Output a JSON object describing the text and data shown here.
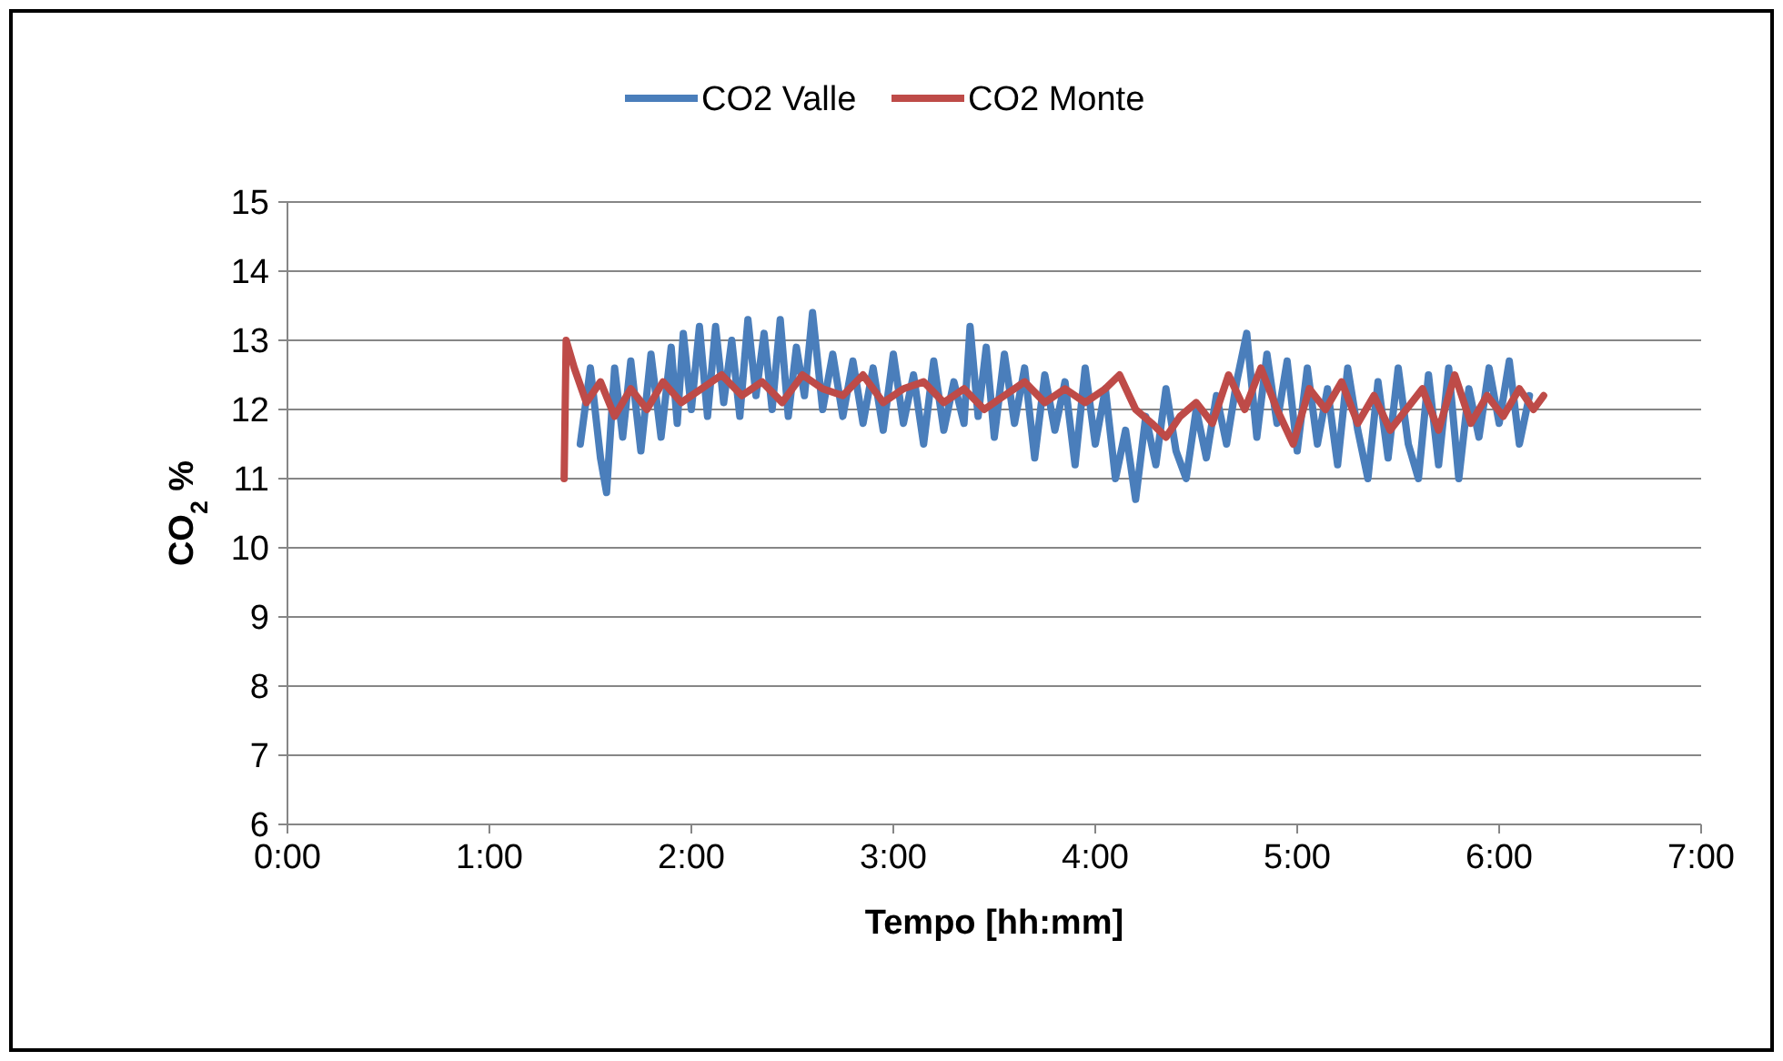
{
  "chart_data": {
    "type": "line",
    "xlabel": "Tempo [hh:mm]",
    "ylabel": "CO$_{2}$ %",
    "ylim": [
      6,
      15
    ],
    "yticks": [
      6,
      7,
      8,
      9,
      10,
      11,
      12,
      13,
      14,
      15
    ],
    "xlim": [
      0,
      7
    ],
    "xticks": [
      {
        "value": 0,
        "label": "0:00"
      },
      {
        "value": 1,
        "label": "1:00"
      },
      {
        "value": 2,
        "label": "2:00"
      },
      {
        "value": 3,
        "label": "3:00"
      },
      {
        "value": 4,
        "label": "4:00"
      },
      {
        "value": 5,
        "label": "5:00"
      },
      {
        "value": 6,
        "label": "6:00"
      },
      {
        "value": 7,
        "label": "7:00"
      }
    ],
    "grid": "y",
    "legend": "top",
    "line_style": "solid",
    "marker": "none",
    "series": [
      {
        "name": "CO2 Valle",
        "color": "#4a7ebb",
        "x": [
          1.45,
          1.5,
          1.55,
          1.58,
          1.62,
          1.66,
          1.7,
          1.75,
          1.8,
          1.85,
          1.9,
          1.93,
          1.96,
          2.0,
          2.04,
          2.08,
          2.12,
          2.16,
          2.2,
          2.24,
          2.28,
          2.32,
          2.36,
          2.4,
          2.44,
          2.48,
          2.52,
          2.56,
          2.6,
          2.65,
          2.7,
          2.75,
          2.8,
          2.85,
          2.9,
          2.95,
          3.0,
          3.05,
          3.1,
          3.15,
          3.2,
          3.25,
          3.3,
          3.35,
          3.38,
          3.42,
          3.46,
          3.5,
          3.55,
          3.6,
          3.65,
          3.7,
          3.75,
          3.8,
          3.85,
          3.9,
          3.95,
          4.0,
          4.05,
          4.1,
          4.15,
          4.2,
          4.25,
          4.3,
          4.35,
          4.4,
          4.45,
          4.5,
          4.55,
          4.6,
          4.65,
          4.7,
          4.75,
          4.8,
          4.85,
          4.9,
          4.95,
          5.0,
          5.05,
          5.1,
          5.15,
          5.2,
          5.25,
          5.3,
          5.35,
          5.4,
          5.45,
          5.5,
          5.55,
          5.6,
          5.65,
          5.7,
          5.75,
          5.8,
          5.85,
          5.9,
          5.95,
          6.0,
          6.05,
          6.1,
          6.15
        ],
        "values": [
          11.5,
          12.6,
          11.3,
          10.8,
          12.6,
          11.6,
          12.7,
          11.4,
          12.8,
          11.6,
          12.9,
          11.8,
          13.1,
          12.0,
          13.2,
          11.9,
          13.2,
          12.1,
          13.0,
          11.9,
          13.3,
          12.2,
          13.1,
          12.0,
          13.3,
          11.9,
          12.9,
          12.2,
          13.4,
          12.0,
          12.8,
          11.9,
          12.7,
          11.8,
          12.6,
          11.7,
          12.8,
          11.8,
          12.5,
          11.5,
          12.7,
          11.7,
          12.4,
          11.8,
          13.2,
          11.9,
          12.9,
          11.6,
          12.8,
          11.8,
          12.6,
          11.3,
          12.5,
          11.7,
          12.4,
          11.2,
          12.6,
          11.5,
          12.3,
          11.0,
          11.7,
          10.7,
          11.9,
          11.2,
          12.3,
          11.4,
          11.0,
          12.0,
          11.3,
          12.2,
          11.5,
          12.4,
          13.1,
          11.6,
          12.8,
          11.8,
          12.7,
          11.4,
          12.6,
          11.5,
          12.3,
          11.2,
          12.6,
          11.7,
          11.0,
          12.4,
          11.3,
          12.6,
          11.5,
          11.0,
          12.5,
          11.2,
          12.6,
          11.0,
          12.3,
          11.6,
          12.6,
          11.8,
          12.7,
          11.5,
          12.2
        ]
      },
      {
        "name": "CO2 Monte",
        "color": "#be4b48",
        "x": [
          1.37,
          1.38,
          1.42,
          1.48,
          1.55,
          1.62,
          1.7,
          1.78,
          1.86,
          1.95,
          2.05,
          2.15,
          2.25,
          2.35,
          2.45,
          2.55,
          2.65,
          2.75,
          2.85,
          2.95,
          3.05,
          3.15,
          3.25,
          3.35,
          3.45,
          3.55,
          3.65,
          3.75,
          3.85,
          3.95,
          4.05,
          4.12,
          4.2,
          4.28,
          4.35,
          4.42,
          4.5,
          4.58,
          4.66,
          4.74,
          4.82,
          4.9,
          4.98,
          5.06,
          5.14,
          5.22,
          5.3,
          5.38,
          5.46,
          5.54,
          5.62,
          5.7,
          5.78,
          5.86,
          5.94,
          6.02,
          6.1,
          6.17,
          6.22
        ],
        "values": [
          11.0,
          13.0,
          12.6,
          12.1,
          12.4,
          11.9,
          12.3,
          12.0,
          12.4,
          12.1,
          12.3,
          12.5,
          12.2,
          12.4,
          12.1,
          12.5,
          12.3,
          12.2,
          12.5,
          12.1,
          12.3,
          12.4,
          12.1,
          12.3,
          12.0,
          12.2,
          12.4,
          12.1,
          12.3,
          12.1,
          12.3,
          12.5,
          12.0,
          11.8,
          11.6,
          11.9,
          12.1,
          11.8,
          12.5,
          12.0,
          12.6,
          12.0,
          11.5,
          12.3,
          12.0,
          12.4,
          11.8,
          12.2,
          11.7,
          12.0,
          12.3,
          11.7,
          12.5,
          11.8,
          12.2,
          11.9,
          12.3,
          12.0,
          12.2
        ]
      }
    ]
  }
}
